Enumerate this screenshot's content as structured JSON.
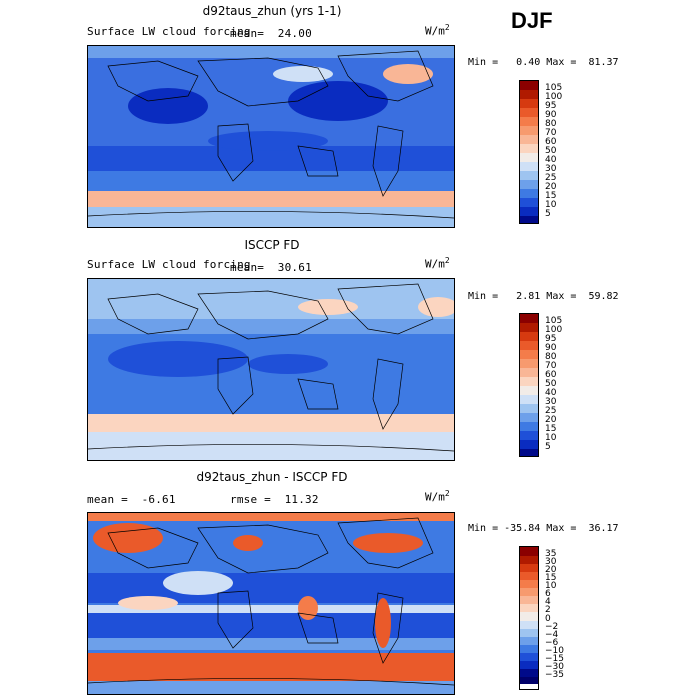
{
  "season": "DJF",
  "units_label": "W/m",
  "units_sup": "2",
  "panels": [
    {
      "title": "d92taus_zhun (yrs 1-1)",
      "subtitle": "Surface LW cloud forcing",
      "mean_label": "mean=",
      "mean": "24.00",
      "min_label": "Min =",
      "min": "0.40",
      "max_label": "Max =",
      "max": "81.37",
      "colorbar_labels": [
        "105",
        "100",
        "95",
        "90",
        "80",
        "70",
        "60",
        "50",
        "40",
        "30",
        "25",
        "20",
        "15",
        "10",
        "5"
      ],
      "colorbar_colors": [
        "#8b0000",
        "#b01a00",
        "#d63a10",
        "#ea5a2a",
        "#f47c4a",
        "#f79a6e",
        "#f9b696",
        "#fbd5c0",
        "#f2ece8",
        "#cfe0f6",
        "#9ec4f0",
        "#6da0ea",
        "#3e7ae3",
        "#1f50d8",
        "#0a2cc0",
        "#000a8a"
      ]
    },
    {
      "title": "ISCCP FD",
      "subtitle": "Surface LW cloud forcing",
      "mean_label": "mean=",
      "mean": "30.61",
      "min_label": "Min =",
      "min": "2.81",
      "max_label": "Max =",
      "max": "59.82",
      "colorbar_labels": [
        "105",
        "100",
        "95",
        "90",
        "80",
        "70",
        "60",
        "50",
        "40",
        "30",
        "25",
        "20",
        "15",
        "10",
        "5"
      ],
      "colorbar_colors": [
        "#8b0000",
        "#b01a00",
        "#d63a10",
        "#ea5a2a",
        "#f47c4a",
        "#f79a6e",
        "#f9b696",
        "#fbd5c0",
        "#f2ece8",
        "#cfe0f6",
        "#9ec4f0",
        "#6da0ea",
        "#3e7ae3",
        "#1f50d8",
        "#0a2cc0",
        "#000a8a"
      ]
    },
    {
      "title": "d92taus_zhun - ISCCP FD",
      "mean_label": "mean =",
      "mean": "-6.61",
      "rmse_label": "rmse =",
      "rmse": "11.32",
      "min_label": "Min =",
      "min": "-35.84",
      "max_label": "Max =",
      "max": "36.17",
      "colorbar_labels": [
        "35",
        "30",
        "20",
        "15",
        "10",
        "6",
        "4",
        "2",
        "0",
        "−2",
        "−4",
        "−6",
        "−10",
        "−15",
        "−30",
        "−35"
      ],
      "colorbar_colors": [
        "#8b0000",
        "#b01a00",
        "#d63a10",
        "#ea5a2a",
        "#f47c4a",
        "#f79a6e",
        "#f9b696",
        "#fbd5c0",
        "#f2ece8",
        "#cfe0f6",
        "#9ec4f0",
        "#6da0ea",
        "#3e7ae3",
        "#1f50d8",
        "#0a2cc0",
        "#000a8a",
        "#00006a"
      ]
    }
  ]
}
